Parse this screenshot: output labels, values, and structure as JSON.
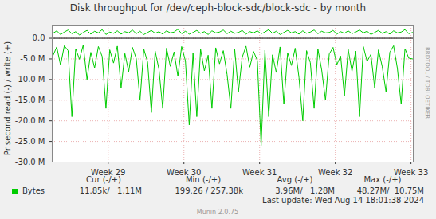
{
  "chart_data": {
    "type": "line",
    "title": "Disk throughput for /dev/ceph-block-sdc/block-sdc - by month",
    "y_label": "Pr second read (-) / write (+)",
    "side_text": "RRDTOOL / TOBI OETIKER",
    "x": [
      28.27,
      28.32,
      28.37,
      28.42,
      28.47,
      28.52,
      28.57,
      28.62,
      28.67,
      28.72,
      28.77,
      28.82,
      28.87,
      28.92,
      28.97,
      29.02,
      29.07,
      29.12,
      29.17,
      29.22,
      29.27,
      29.32,
      29.37,
      29.42,
      29.47,
      29.52,
      29.57,
      29.62,
      29.67,
      29.72,
      29.77,
      29.82,
      29.87,
      29.92,
      29.97,
      30.02,
      30.07,
      30.12,
      30.17,
      30.22,
      30.27,
      30.32,
      30.37,
      30.42,
      30.47,
      30.52,
      30.57,
      30.62,
      30.67,
      30.72,
      30.77,
      30.82,
      30.87,
      30.92,
      30.97,
      31.02,
      31.07,
      31.12,
      31.17,
      31.22,
      31.27,
      31.32,
      31.37,
      31.42,
      31.47,
      31.52,
      31.57,
      31.62,
      31.67,
      31.72,
      31.77,
      31.82,
      31.87,
      31.92,
      31.97,
      32.02,
      32.07,
      32.12,
      32.17,
      32.22,
      32.27,
      32.32,
      32.37,
      32.42,
      32.47,
      32.52,
      32.57,
      32.62,
      32.67,
      32.72,
      32.77,
      32.82,
      32.87,
      32.92,
      32.97,
      33.02
    ],
    "series": [
      {
        "name": "Bytes",
        "color": "#00cc00",
        "values": [
          -4200000,
          -2100000,
          -6500000,
          -1800000,
          -3000000,
          -19000000,
          -2500000,
          -5100000,
          -1600000,
          -10000000,
          -3400000,
          -7200000,
          -2000000,
          -4400000,
          -17000000,
          -2800000,
          -6000000,
          -1900000,
          -12000000,
          -3700000,
          -8100000,
          -2200000,
          -4900000,
          -15000000,
          -2600000,
          -5800000,
          -18000000,
          -3100000,
          -7500000,
          -17000000,
          -2400000,
          -6800000,
          -3300000,
          -9200000,
          -2000000,
          -5500000,
          -21000000,
          -3600000,
          -19000000,
          -2700000,
          -7900000,
          -4100000,
          -17000000,
          -2300000,
          -6200000,
          -3000000,
          -8800000,
          -17000000,
          -2500000,
          -13000000,
          -4600000,
          -1900000,
          -7000000,
          -3200000,
          -5400000,
          -26000000,
          -2900000,
          -19000000,
          -4000000,
          -8300000,
          -2100000,
          -16000000,
          -3500000,
          -6600000,
          -2400000,
          -9500000,
          -20000000,
          -3000000,
          -5900000,
          -17000000,
          -2600000,
          -7700000,
          -15000000,
          -3800000,
          -2200000,
          -6400000,
          -4300000,
          -14000000,
          -2700000,
          -8000000,
          -3100000,
          -19000000,
          -2000000,
          -5600000,
          -3900000,
          -12000000,
          -2800000,
          -6900000,
          -13000000,
          -3400000,
          -1800000,
          -7300000,
          -16000000,
          -2500000,
          -4800000,
          -5000000
        ]
      },
      {
        "name": "Bytes",
        "color": "#00cc00",
        "values": [
          1200000,
          1800000,
          900000,
          1500000,
          2000000,
          1100000,
          1600000,
          800000,
          1400000,
          1900000,
          1000000,
          1700000,
          1300000,
          2100000,
          900000,
          1500000,
          1200000,
          1800000,
          1000000,
          1600000,
          1300000,
          2000000,
          1100000,
          1700000,
          900000,
          1400000,
          1900000,
          1200000,
          1600000,
          1000000,
          1800000,
          1300000,
          1500000,
          2200000,
          1100000,
          1700000,
          1000000,
          1400000,
          1900000,
          1200000,
          1600000,
          900000,
          1800000,
          1300000,
          1500000,
          2000000,
          1100000,
          1700000,
          1200000,
          1400000,
          1900000,
          1000000,
          1600000,
          1300000,
          1800000,
          1100000,
          1500000,
          2100000,
          1200000,
          1700000,
          900000,
          1400000,
          1900000,
          1300000,
          1600000,
          1000000,
          1800000,
          1200000,
          1500000,
          2000000,
          1100000,
          1700000,
          1300000,
          1400000,
          1900000,
          1000000,
          1600000,
          1200000,
          1800000,
          1100000,
          1500000,
          2000000,
          1300000,
          1700000,
          900000,
          1400000,
          1900000,
          1200000,
          1600000,
          1000000,
          1800000,
          1300000,
          1500000,
          2100000,
          1100000,
          1400000
        ]
      }
    ],
    "xlim": [
      28.26,
      33.03
    ],
    "xticks": [
      {
        "value": 29,
        "label": "Week 29"
      },
      {
        "value": 30,
        "label": "Week 30"
      },
      {
        "value": 31,
        "label": "Week 31"
      },
      {
        "value": 32,
        "label": "Week 32"
      },
      {
        "value": 33,
        "label": "Week 33"
      }
    ],
    "ylim": [
      -30000000,
      3000000
    ],
    "yticks": [
      {
        "value": 0,
        "label": "0.0"
      },
      {
        "value": -5000000,
        "label": "-5.0 M"
      },
      {
        "value": -10000000,
        "label": "-10.0 M"
      },
      {
        "value": -15000000,
        "label": "-15.0 M"
      },
      {
        "value": -20000000,
        "label": "-20.0 M"
      },
      {
        "value": -25000000,
        "label": "-25.0 M"
      },
      {
        "value": -30000000,
        "label": "-30.0 M"
      }
    ],
    "grid": true,
    "legend_table": {
      "headers": [
        "Cur (-/+)",
        "Min (-/+)",
        "Avg (-/+)",
        "Max (-/+)"
      ],
      "rows": [
        {
          "name": "Bytes",
          "cells": [
            "11.85k/   1.11M",
            "199.26 / 257.38k",
            "3.96M/   1.28M",
            "48.27M/  10.75M"
          ]
        }
      ]
    },
    "last_update": "Last update: Wed Aug 14 18:01:38 2024",
    "footer": "Munin 2.0.75"
  }
}
